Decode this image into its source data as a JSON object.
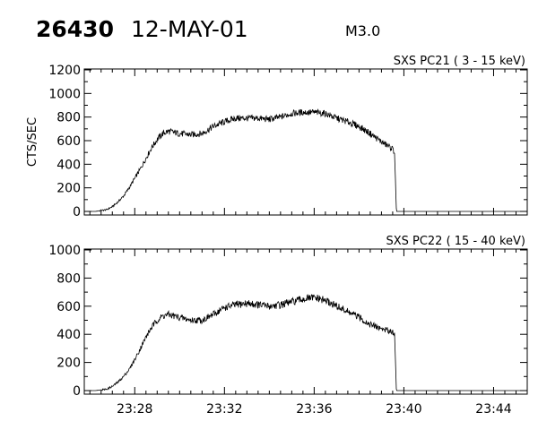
{
  "header": {
    "event_id": "26430",
    "date": "12-MAY-01",
    "flare_class": "M3.0"
  },
  "chart_data": [
    {
      "type": "line",
      "title": "SXS PC21  (  3 - 15 keV)",
      "ylabel": "CTS/SEC",
      "ylim": [
        0,
        1200
      ],
      "yticks": [
        0,
        200,
        400,
        600,
        800,
        1000,
        1200
      ],
      "xlim": [
        "23:25:45",
        "23:45:30"
      ],
      "xticks": [
        "23:28",
        "23:32",
        "23:36",
        "23:40",
        "23:44"
      ],
      "show_x_tick_labels": false,
      "series": [
        {
          "x": [
            "23:25:45",
            "23:26:15",
            "23:26:45",
            "23:27:00",
            "23:27:15",
            "23:27:30",
            "23:27:45",
            "23:28:00",
            "23:28:15",
            "23:28:30",
            "23:28:45",
            "23:29:00",
            "23:29:15",
            "23:29:30",
            "23:30:00",
            "23:30:30",
            "23:31:00",
            "23:31:30",
            "23:32:00",
            "23:32:30",
            "23:33:00",
            "23:33:30",
            "23:34:00",
            "23:34:30",
            "23:35:00",
            "23:35:30",
            "23:36:00",
            "23:36:30",
            "23:37:00",
            "23:37:30",
            "23:38:00",
            "23:38:30",
            "23:39:00",
            "23:39:30",
            "23:39:35",
            "23:39:40",
            "23:45:30"
          ],
          "y": [
            0,
            0,
            15,
            40,
            80,
            130,
            200,
            280,
            360,
            450,
            540,
            610,
            660,
            680,
            660,
            650,
            660,
            720,
            760,
            790,
            790,
            790,
            780,
            800,
            830,
            840,
            840,
            830,
            790,
            760,
            720,
            660,
            590,
            530,
            500,
            0,
            0
          ]
        }
      ]
    },
    {
      "type": "line",
      "title": "SXS PC22  ( 15 - 40 keV)",
      "ylabel": "",
      "ylim": [
        0,
        1000
      ],
      "yticks": [
        0,
        200,
        400,
        600,
        800,
        1000
      ],
      "xlim": [
        "23:25:45",
        "23:45:30"
      ],
      "xticks": [
        "23:28",
        "23:32",
        "23:36",
        "23:40",
        "23:44"
      ],
      "show_x_tick_labels": true,
      "series": [
        {
          "x": [
            "23:25:45",
            "23:26:15",
            "23:26:45",
            "23:27:00",
            "23:27:15",
            "23:27:30",
            "23:27:45",
            "23:28:00",
            "23:28:15",
            "23:28:30",
            "23:28:45",
            "23:29:00",
            "23:29:15",
            "23:29:30",
            "23:30:00",
            "23:30:30",
            "23:31:00",
            "23:31:30",
            "23:32:00",
            "23:32:30",
            "23:33:00",
            "23:33:30",
            "23:34:00",
            "23:34:30",
            "23:35:00",
            "23:35:30",
            "23:36:00",
            "23:36:30",
            "23:37:00",
            "23:37:30",
            "23:38:00",
            "23:38:30",
            "23:39:00",
            "23:39:30",
            "23:39:35",
            "23:39:40",
            "23:45:30"
          ],
          "y": [
            0,
            0,
            10,
            30,
            60,
            100,
            150,
            220,
            300,
            380,
            450,
            500,
            530,
            540,
            520,
            500,
            500,
            540,
            590,
            610,
            620,
            610,
            600,
            610,
            630,
            650,
            660,
            640,
            600,
            560,
            520,
            470,
            440,
            420,
            400,
            0,
            0
          ]
        }
      ]
    }
  ]
}
